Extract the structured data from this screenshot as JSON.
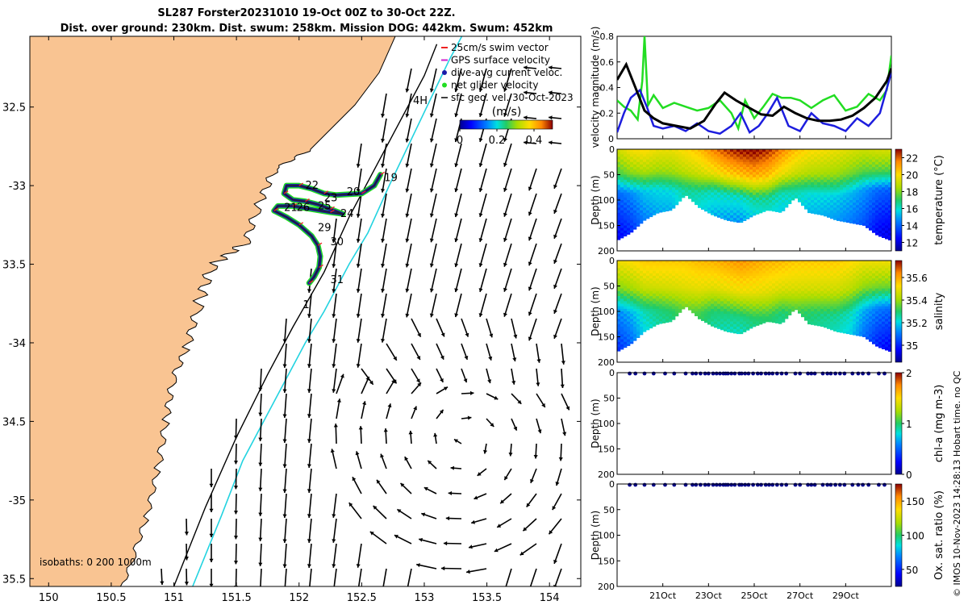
{
  "header": {
    "title_line1": "SL287 Forster20231010 19-Oct 00Z to 30-Oct 22Z.",
    "title_line2": "Dist. over ground: 230km. Dist. swum: 258km. Mission DOG: 442km. Swum: 452km"
  },
  "credit": "© IMOS 10-Nov-2023 14:28:13 Hobart time. no QC",
  "colors": {
    "land": "#f9c492",
    "sea": "#ffffff",
    "isobath_shelf": "#000000",
    "isobath_deep": "#22d3e0",
    "speed_line": "#000000",
    "dive_avg_line": "#1d1dde",
    "net_glider_line": "#22dd22"
  },
  "chart_data": [
    {
      "id": "map",
      "type": "map",
      "xlim": [
        149.85,
        154.25
      ],
      "ylim": [
        -35.55,
        -32.05
      ],
      "x_ticks": [
        150,
        150.5,
        151,
        151.5,
        152,
        152.5,
        153,
        153.5,
        154
      ],
      "y_ticks": [
        -32.5,
        -33,
        -33.5,
        -34,
        -34.5,
        -35,
        -35.5
      ],
      "x_tick_labels": [
        "150",
        "150.5",
        "151",
        "151.5",
        "152",
        "152.5",
        "153",
        "153.5",
        "154"
      ],
      "y_tick_labels": [
        "32.5",
        "-33",
        "33.5",
        "-34",
        "34.5",
        "-35",
        "35.5"
      ],
      "legend": {
        "items": [
          {
            "label": "25cm/s swim vector",
            "color": "#ee2222",
            "shape": "line"
          },
          {
            "label": "GPS surface velocity",
            "color": "#cc22cc",
            "shape": "line"
          },
          {
            "label": "dive-avg current veloc.",
            "color": "#1a1aa8",
            "shape": "dot"
          },
          {
            "label": "net glider velocity",
            "color": "#22dd22",
            "shape": "dot"
          },
          {
            "label": "sfc geo. vel. 30-Oct-2023",
            "color": "#000000",
            "shape": "arrow"
          }
        ],
        "colorbar_title": "(m/s)",
        "colorbar_ticks": [
          "0",
          "0.2",
          "0.4"
        ],
        "colorbar_range": [
          0,
          0.5
        ]
      },
      "day_labels": [
        {
          "label": "19",
          "lon": 152.68,
          "lat": -32.97
        },
        {
          "label": "22",
          "lon": 152.05,
          "lat": -33.02
        },
        {
          "label": "23",
          "lon": 152.2,
          "lat": -33.1
        },
        {
          "label": "20",
          "lon": 152.38,
          "lat": -33.06
        },
        {
          "label": "21",
          "lon": 151.88,
          "lat": -33.16
        },
        {
          "label": "26",
          "lon": 151.98,
          "lat": -33.16
        },
        {
          "label": "25",
          "lon": 152.15,
          "lat": -33.15
        },
        {
          "label": "24",
          "lon": 152.33,
          "lat": -33.2
        },
        {
          "label": "29",
          "lon": 152.15,
          "lat": -33.29
        },
        {
          "label": "30",
          "lon": 152.25,
          "lat": -33.38
        },
        {
          "label": "31",
          "lon": 152.25,
          "lat": -33.62
        },
        {
          "label": "1",
          "lon": 152.03,
          "lat": -33.78
        },
        {
          "label": "4H",
          "lon": 152.91,
          "lat": -32.48
        }
      ],
      "isobaths_label": "isobaths: 0   200  1000m",
      "isobath_200m": [
        [
          151.0,
          -35.55
        ],
        [
          151.25,
          -35.05
        ],
        [
          151.5,
          -34.6
        ],
        [
          151.75,
          -34.2
        ],
        [
          151.95,
          -33.9
        ],
        [
          152.2,
          -33.55
        ],
        [
          152.4,
          -33.2
        ],
        [
          152.6,
          -32.9
        ],
        [
          152.8,
          -32.6
        ],
        [
          153.0,
          -32.3
        ],
        [
          153.1,
          -32.1
        ]
      ],
      "isobath_1000m": [
        [
          151.15,
          -35.55
        ],
        [
          151.38,
          -35.1
        ],
        [
          151.55,
          -34.75
        ],
        [
          151.85,
          -34.3
        ],
        [
          152.05,
          -34.0
        ],
        [
          152.2,
          -33.8
        ],
        [
          152.4,
          -33.5
        ],
        [
          152.55,
          -33.3
        ],
        [
          152.72,
          -33.0
        ],
        [
          152.9,
          -32.7
        ],
        [
          153.05,
          -32.45
        ],
        [
          153.2,
          -32.2
        ],
        [
          153.3,
          -32.05
        ]
      ],
      "track_points": [
        [
          152.65,
          -32.93
        ],
        [
          152.6,
          -33.0
        ],
        [
          152.5,
          -33.05
        ],
        [
          152.3,
          -33.06
        ],
        [
          152.2,
          -33.05
        ],
        [
          152.1,
          -33.02
        ],
        [
          152.0,
          -33.0
        ],
        [
          151.9,
          -33.0
        ],
        [
          151.88,
          -33.05
        ],
        [
          151.95,
          -33.09
        ],
        [
          152.05,
          -33.1
        ],
        [
          152.15,
          -33.12
        ],
        [
          152.25,
          -33.15
        ],
        [
          152.35,
          -33.18
        ],
        [
          152.25,
          -33.17
        ],
        [
          152.1,
          -33.15
        ],
        [
          151.95,
          -33.13
        ],
        [
          151.83,
          -33.13
        ],
        [
          151.8,
          -33.16
        ],
        [
          151.9,
          -33.2
        ],
        [
          152.0,
          -33.25
        ],
        [
          152.1,
          -33.32
        ],
        [
          152.15,
          -33.38
        ],
        [
          152.17,
          -33.45
        ],
        [
          152.16,
          -33.52
        ],
        [
          152.12,
          -33.58
        ],
        [
          152.08,
          -33.62
        ]
      ]
    },
    {
      "id": "speed",
      "type": "line",
      "ylabel": "velocity magnitude (m/s)",
      "xlim": [
        19.0,
        31.0
      ],
      "ylim": [
        0,
        0.8
      ],
      "y_ticks": [
        0,
        0.2,
        0.4,
        0.6,
        0.8
      ],
      "y_tick_labels": [
        "0",
        "0.2",
        "0.4",
        "0.6",
        "0.8"
      ],
      "x_ticks": [
        21,
        23,
        25,
        27,
        29
      ],
      "series": [
        {
          "name": "geostrophic surface speed",
          "color": "#000000",
          "x": [
            19.0,
            19.4,
            19.8,
            20.2,
            20.6,
            21.0,
            21.6,
            22.2,
            22.8,
            23.3,
            23.7,
            24.2,
            24.8,
            25.3,
            25.8,
            26.3,
            26.8,
            27.3,
            27.8,
            28.3,
            28.8,
            29.3,
            29.8,
            30.3,
            30.8,
            31.0
          ],
          "y": [
            0.46,
            0.58,
            0.4,
            0.22,
            0.16,
            0.12,
            0.1,
            0.08,
            0.14,
            0.27,
            0.36,
            0.3,
            0.24,
            0.19,
            0.18,
            0.25,
            0.2,
            0.16,
            0.14,
            0.14,
            0.15,
            0.18,
            0.24,
            0.32,
            0.45,
            0.55
          ]
        },
        {
          "name": "dive-avg current",
          "color": "#1d1dde",
          "x": [
            19.0,
            19.3,
            19.6,
            20.0,
            20.3,
            20.6,
            21.0,
            21.5,
            22.0,
            22.5,
            23.0,
            23.5,
            24.0,
            24.4,
            24.8,
            25.2,
            25.6,
            26.0,
            26.5,
            27.0,
            27.5,
            28.0,
            28.5,
            29.0,
            29.5,
            30.0,
            30.5,
            31.0
          ],
          "y": [
            0.05,
            0.2,
            0.32,
            0.38,
            0.25,
            0.1,
            0.08,
            0.1,
            0.06,
            0.12,
            0.06,
            0.04,
            0.1,
            0.2,
            0.05,
            0.1,
            0.2,
            0.32,
            0.1,
            0.06,
            0.2,
            0.12,
            0.1,
            0.06,
            0.16,
            0.1,
            0.2,
            0.52
          ]
        },
        {
          "name": "net glider velocity",
          "color": "#22dd22",
          "x": [
            19.0,
            19.3,
            19.6,
            19.9,
            20.1,
            20.2,
            20.35,
            20.6,
            21.0,
            21.5,
            22.0,
            22.5,
            23.0,
            23.5,
            24.0,
            24.3,
            24.6,
            25.0,
            25.4,
            25.8,
            26.2,
            26.6,
            27.0,
            27.5,
            28.0,
            28.5,
            29.0,
            29.5,
            30.0,
            30.5,
            30.8,
            31.0
          ],
          "y": [
            0.3,
            0.25,
            0.22,
            0.15,
            0.45,
            0.8,
            0.26,
            0.34,
            0.24,
            0.28,
            0.25,
            0.22,
            0.24,
            0.3,
            0.2,
            0.08,
            0.3,
            0.16,
            0.25,
            0.35,
            0.32,
            0.32,
            0.3,
            0.24,
            0.3,
            0.34,
            0.22,
            0.25,
            0.35,
            0.3,
            0.38,
            0.65
          ]
        }
      ]
    },
    {
      "id": "temperature",
      "type": "heatmap",
      "ylabel": "Depth (m)",
      "colorbar_label": "temperature (°C)",
      "colorbar_range": [
        11,
        23
      ],
      "colorbar_ticks": [
        "22",
        "20",
        "18",
        "16",
        "14",
        "12"
      ],
      "ylim": [
        0,
        200
      ],
      "y_tick_labels": [
        "0",
        "50",
        "100",
        "150",
        "200"
      ],
      "xlim": [
        19.0,
        31.0
      ],
      "profile_days": [
        19.0,
        19.6,
        20.2,
        20.8,
        21.4,
        22.0,
        22.6,
        23.2,
        23.8,
        24.4,
        25.0,
        25.6,
        26.2,
        26.8,
        27.4,
        28.0,
        28.6,
        29.2,
        29.8,
        30.4,
        31.0
      ],
      "max_depth_m": [
        180,
        165,
        140,
        125,
        120,
        90,
        115,
        130,
        140,
        145,
        130,
        120,
        125,
        95,
        125,
        130,
        140,
        145,
        150,
        170,
        180
      ],
      "surface_value": [
        19.0,
        19.8,
        20.0,
        19.6,
        19.6,
        20.0,
        20.5,
        21.5,
        22.3,
        22.8,
        23.0,
        22.5,
        21.5,
        20.5,
        20.0,
        19.8,
        19.6,
        19.3,
        19.0,
        19.2,
        19.2
      ],
      "thermocline_depth_m": [
        60,
        60,
        58,
        55,
        58,
        55,
        60,
        58,
        62,
        65,
        68,
        66,
        60,
        58,
        60,
        62,
        64,
        60,
        55,
        55,
        55
      ],
      "bottom_value": [
        12.5,
        13.0,
        14.0,
        14.5,
        14.5,
        15.5,
        15.0,
        14.5,
        14.2,
        14.0,
        14.5,
        14.8,
        14.6,
        15.0,
        14.6,
        14.5,
        14.3,
        14.0,
        13.5,
        12.5,
        12.2
      ]
    },
    {
      "id": "salinity",
      "type": "heatmap",
      "ylabel": "Depth (m)",
      "colorbar_label": "salinity",
      "colorbar_range": [
        34.85,
        35.75
      ],
      "colorbar_ticks": [
        "35.6",
        "35.4",
        "35.2",
        "35"
      ],
      "ylim": [
        0,
        200
      ],
      "y_tick_labels": [
        "0",
        "50",
        "100",
        "150",
        "200"
      ],
      "xlim": [
        19.0,
        31.0
      ],
      "profile_days": [
        19.0,
        19.6,
        20.2,
        20.8,
        21.4,
        22.0,
        22.6,
        23.2,
        23.8,
        24.4,
        25.0,
        25.6,
        26.2,
        26.8,
        27.4,
        28.0,
        28.6,
        29.2,
        29.8,
        30.4,
        31.0
      ],
      "max_depth_m": [
        180,
        165,
        140,
        125,
        120,
        90,
        115,
        130,
        140,
        145,
        130,
        120,
        125,
        95,
        125,
        130,
        140,
        145,
        150,
        170,
        180
      ],
      "surface_value": [
        35.5,
        35.52,
        35.55,
        35.55,
        35.55,
        35.55,
        35.57,
        35.58,
        35.6,
        35.62,
        35.6,
        35.58,
        35.57,
        35.55,
        35.55,
        35.55,
        35.55,
        35.53,
        35.5,
        35.5,
        35.5
      ],
      "thermocline_depth_m": [
        70,
        72,
        70,
        68,
        70,
        66,
        72,
        70,
        74,
        78,
        80,
        78,
        72,
        70,
        72,
        74,
        76,
        72,
        68,
        66,
        66
      ],
      "bottom_value": [
        35.0,
        35.05,
        35.15,
        35.2,
        35.22,
        35.3,
        35.25,
        35.2,
        35.18,
        35.17,
        35.2,
        35.22,
        35.2,
        35.25,
        35.22,
        35.2,
        35.18,
        35.15,
        35.05,
        34.98,
        34.95
      ]
    },
    {
      "id": "chla",
      "type": "scatter",
      "ylabel": "Depth (m)",
      "colorbar_label": "chl-a (mg m-3)",
      "colorbar_range": [
        0,
        2
      ],
      "colorbar_ticks": [
        "2",
        "1",
        "0"
      ],
      "ylim": [
        0,
        200
      ],
      "y_tick_labels": [
        "0",
        "50",
        "100",
        "150",
        "200"
      ],
      "xlim": [
        19.0,
        31.0
      ],
      "point_color": "#08088c",
      "sample_days": [
        19.55,
        19.8,
        20.2,
        20.6,
        21.1,
        21.5,
        22.0,
        22.3,
        22.45,
        22.65,
        22.85,
        23.0,
        23.2,
        23.35,
        23.5,
        23.65,
        23.75,
        23.85,
        24.0,
        24.15,
        24.35,
        24.45,
        24.6,
        24.75,
        24.95,
        25.15,
        25.3,
        25.5,
        25.65,
        25.8,
        26.0,
        26.2,
        26.4,
        26.8,
        27.0,
        27.35,
        27.5,
        27.65,
        28.0,
        28.2,
        28.35,
        28.55,
        28.75,
        28.95,
        29.3,
        29.55,
        29.75,
        30.0,
        30.45,
        30.7
      ],
      "sample_depth_m": 0
    },
    {
      "id": "oxygen",
      "type": "scatter",
      "ylabel": "Depth (m)",
      "colorbar_label": "Ox. sat. ratio (%)",
      "colorbar_range": [
        25,
        175
      ],
      "colorbar_ticks": [
        "150",
        "100",
        "50"
      ],
      "ylim": [
        0,
        200
      ],
      "y_tick_labels": [
        "0",
        "50",
        "100",
        "150",
        "200"
      ],
      "xlim": [
        19.0,
        31.0
      ],
      "x_ticks": [
        21,
        23,
        25,
        27,
        29
      ],
      "x_tick_labels": [
        "21Oct",
        "23Oct",
        "25Oct",
        "27Oct",
        "29Oct"
      ],
      "point_color": "#08088c",
      "sample_days": [
        19.55,
        19.8,
        20.2,
        20.6,
        21.1,
        21.5,
        22.0,
        22.3,
        22.45,
        22.65,
        22.85,
        23.0,
        23.2,
        23.35,
        23.5,
        23.65,
        23.75,
        23.85,
        24.0,
        24.15,
        24.35,
        24.45,
        24.6,
        24.75,
        24.95,
        25.15,
        25.3,
        25.5,
        25.65,
        25.8,
        26.0,
        26.2,
        26.4,
        26.8,
        27.0,
        27.35,
        27.5,
        27.65,
        28.0,
        28.2,
        28.35,
        28.55,
        28.75,
        28.95,
        29.3,
        29.55,
        29.75,
        30.0,
        30.45,
        30.7
      ],
      "sample_depth_m": 0
    }
  ]
}
